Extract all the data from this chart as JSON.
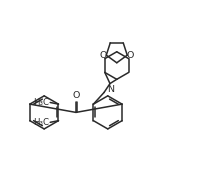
{
  "bg_color": "#ffffff",
  "line_color": "#2a2a2a",
  "lw": 1.1,
  "figsize": [
    2.24,
    1.93
  ],
  "dpi": 100,
  "fs": 6.2,
  "fsa": 6.8,
  "xlim": [
    0.0,
    10.5
  ],
  "ylim": [
    0.0,
    9.0
  ]
}
